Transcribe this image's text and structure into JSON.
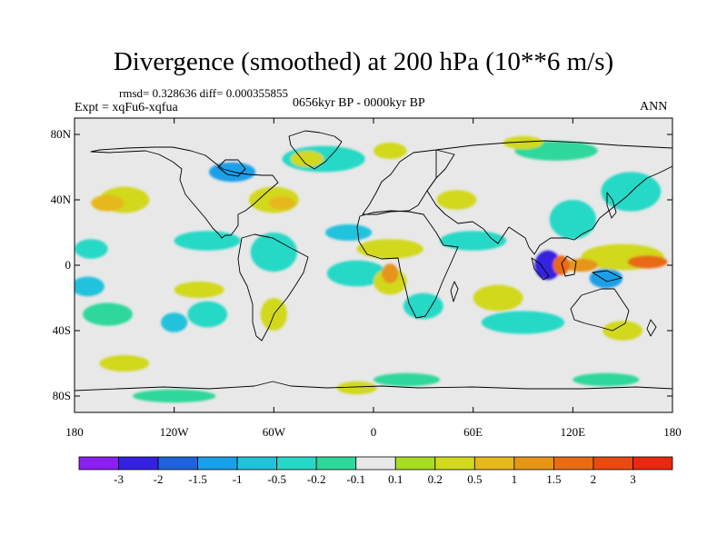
{
  "title": "Divergence (smoothed) at 200 hPa (10**6 m/s)",
  "stats": "rmsd= 0.328636 diff= 0.000355855",
  "experiment": "Expt = xqFu6-xqfua",
  "period": "0656kyr BP - 0000kyr BP",
  "season": "ANN",
  "map": {
    "projection": "cylindrical-equidistant",
    "lon_range": [
      -180,
      180
    ],
    "lat_range": [
      -90,
      90
    ],
    "lat_ticks": [
      {
        "value": 80,
        "label": "80N"
      },
      {
        "value": 40,
        "label": "40N"
      },
      {
        "value": 0,
        "label": "0"
      },
      {
        "value": -40,
        "label": "40S"
      },
      {
        "value": -80,
        "label": "80S"
      }
    ],
    "lon_ticks": [
      {
        "value": -180,
        "label": "180"
      },
      {
        "value": -120,
        "label": "120W"
      },
      {
        "value": -60,
        "label": "60W"
      },
      {
        "value": 0,
        "label": "0"
      },
      {
        "value": 60,
        "label": "60E"
      },
      {
        "value": 120,
        "label": "120E"
      },
      {
        "value": 180,
        "label": "180"
      }
    ]
  },
  "colorbar": {
    "colors": [
      "#8b1ff0",
      "#3522e0",
      "#1f63dc",
      "#1a9fe8",
      "#22c2dc",
      "#28d8c6",
      "#2ed89a",
      "#e8e8e8",
      "#a8dc22",
      "#d2d81e",
      "#e6b81e",
      "#e6941a",
      "#e86b16",
      "#e84a12",
      "#e82810"
    ],
    "labels": [
      "-3",
      "-2",
      "-1.5",
      "-1",
      "-0.5",
      "-0.2",
      "-0.1",
      "0.1",
      "0.2",
      "0.5",
      "1",
      "1.5",
      "2",
      "3"
    ]
  },
  "field_anomalies": [
    {
      "lon": 105,
      "lat": 0,
      "rx": 8,
      "ry": 9,
      "level": 1
    },
    {
      "lon": 140,
      "lat": -8,
      "rx": 10,
      "ry": 6,
      "level": 3
    },
    {
      "lon": -85,
      "lat": 57,
      "rx": 14,
      "ry": 6,
      "level": 3
    },
    {
      "lon": -15,
      "lat": 20,
      "rx": 14,
      "ry": 5,
      "level": 4
    },
    {
      "lon": -172,
      "lat": -13,
      "rx": 10,
      "ry": 6,
      "level": 4
    },
    {
      "lon": -120,
      "lat": -35,
      "rx": 8,
      "ry": 6,
      "level": 4
    },
    {
      "lon": -60,
      "lat": 8,
      "rx": 14,
      "ry": 12,
      "level": 5
    },
    {
      "lon": -10,
      "lat": -5,
      "rx": 18,
      "ry": 8,
      "level": 5
    },
    {
      "lon": 30,
      "lat": -25,
      "rx": 12,
      "ry": 8,
      "level": 5
    },
    {
      "lon": 60,
      "lat": 15,
      "rx": 20,
      "ry": 6,
      "level": 5
    },
    {
      "lon": 120,
      "lat": 28,
      "rx": 14,
      "ry": 12,
      "level": 5
    },
    {
      "lon": 155,
      "lat": 45,
      "rx": 18,
      "ry": 12,
      "level": 5
    },
    {
      "lon": -30,
      "lat": 65,
      "rx": 25,
      "ry": 8,
      "level": 5
    },
    {
      "lon": -100,
      "lat": 15,
      "rx": 20,
      "ry": 6,
      "level": 5
    },
    {
      "lon": -170,
      "lat": 10,
      "rx": 10,
      "ry": 6,
      "level": 5
    },
    {
      "lon": 90,
      "lat": -35,
      "rx": 25,
      "ry": 7,
      "level": 5
    },
    {
      "lon": -100,
      "lat": -30,
      "rx": 12,
      "ry": 8,
      "level": 5
    },
    {
      "lon": -160,
      "lat": -30,
      "rx": 15,
      "ry": 7,
      "level": 6
    },
    {
      "lon": 20,
      "lat": -70,
      "rx": 20,
      "ry": 4,
      "level": 6
    },
    {
      "lon": 140,
      "lat": -70,
      "rx": 20,
      "ry": 4,
      "level": 6
    },
    {
      "lon": -120,
      "lat": -80,
      "rx": 25,
      "ry": 4,
      "level": 6
    },
    {
      "lon": 110,
      "lat": 70,
      "rx": 25,
      "ry": 6,
      "level": 6
    },
    {
      "lon": -150,
      "lat": 40,
      "rx": 15,
      "ry": 8,
      "level": 9
    },
    {
      "lon": -60,
      "lat": 40,
      "rx": 15,
      "ry": 8,
      "level": 9
    },
    {
      "lon": -40,
      "lat": 65,
      "rx": 10,
      "ry": 5,
      "level": 9
    },
    {
      "lon": 10,
      "lat": 10,
      "rx": 20,
      "ry": 6,
      "level": 9
    },
    {
      "lon": 10,
      "lat": -10,
      "rx": 10,
      "ry": 8,
      "level": 9
    },
    {
      "lon": 75,
      "lat": -20,
      "rx": 15,
      "ry": 8,
      "level": 9
    },
    {
      "lon": 150,
      "lat": 5,
      "rx": 25,
      "ry": 8,
      "level": 9
    },
    {
      "lon": -105,
      "lat": -15,
      "rx": 15,
      "ry": 5,
      "level": 9
    },
    {
      "lon": 50,
      "lat": 40,
      "rx": 12,
      "ry": 6,
      "level": 9
    },
    {
      "lon": -10,
      "lat": -75,
      "rx": 12,
      "ry": 4,
      "level": 9
    },
    {
      "lon": 90,
      "lat": 75,
      "rx": 12,
      "ry": 4,
      "level": 9
    },
    {
      "lon": 10,
      "lat": 70,
      "rx": 10,
      "ry": 5,
      "level": 9
    },
    {
      "lon": -60,
      "lat": -30,
      "rx": 8,
      "ry": 10,
      "level": 9
    },
    {
      "lon": -150,
      "lat": -60,
      "rx": 15,
      "ry": 5,
      "level": 9
    },
    {
      "lon": 150,
      "lat": -40,
      "rx": 12,
      "ry": 6,
      "level": 9
    },
    {
      "lon": -160,
      "lat": 38,
      "rx": 10,
      "ry": 5,
      "level": 10
    },
    {
      "lon": -55,
      "lat": 38,
      "rx": 8,
      "ry": 4,
      "level": 10
    },
    {
      "lon": 10,
      "lat": -5,
      "rx": 5,
      "ry": 6,
      "level": 11
    },
    {
      "lon": 125,
      "lat": 0,
      "rx": 10,
      "ry": 4,
      "level": 11
    },
    {
      "lon": 165,
      "lat": 2,
      "rx": 12,
      "ry": 4,
      "level": 12
    },
    {
      "lon": 113,
      "lat": 0,
      "rx": 5,
      "ry": 6,
      "level": 12
    }
  ]
}
